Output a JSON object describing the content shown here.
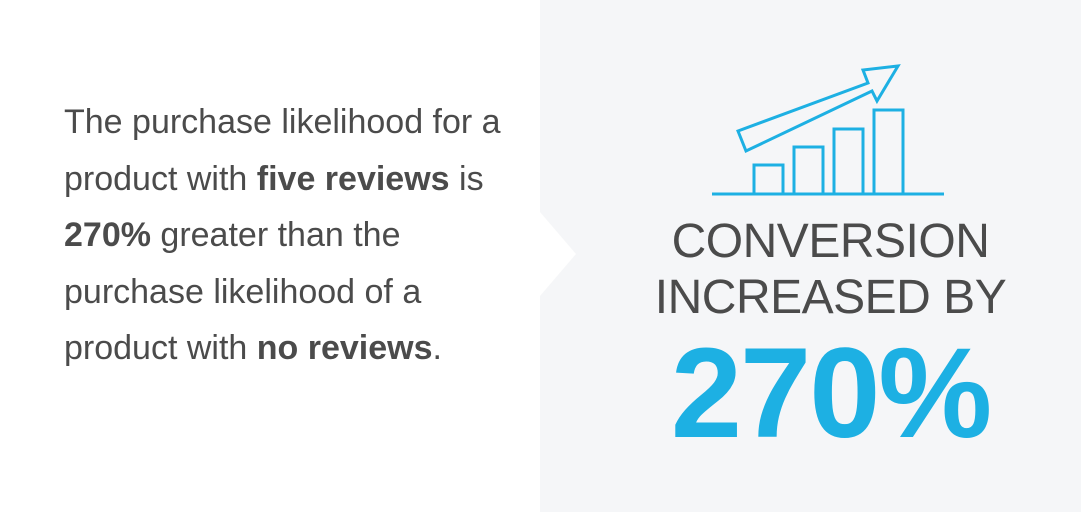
{
  "statement": {
    "part1": "The purchase likelihood for a product with ",
    "bold1": "five reviews",
    "part2": " is ",
    "bold2": "270%",
    "part3": " greater than the purchase likelihood of a product with ",
    "bold3": "no reviews",
    "part4": "."
  },
  "highlight": {
    "line1": "CONVERSION",
    "line2": "INCREASED BY",
    "value": "270%"
  },
  "icon": "bar-chart-rising-arrow-icon",
  "colors": {
    "accent": "#1db0e3",
    "text": "#4b4b4b",
    "right_panel_bg": "#f5f6f8"
  }
}
